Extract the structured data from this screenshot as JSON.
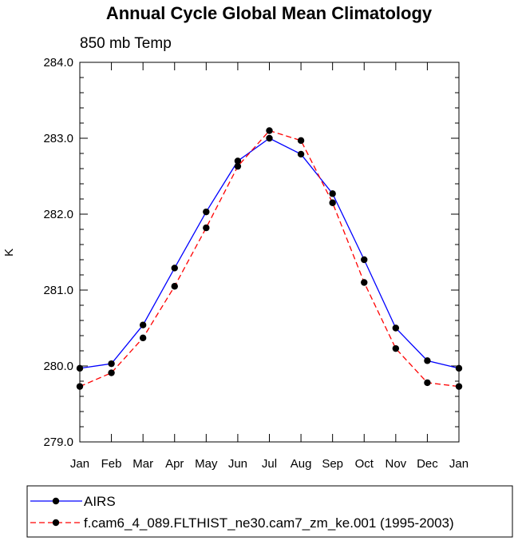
{
  "chart_data": {
    "type": "line",
    "title": "Annual Cycle Global Mean Climatology",
    "subtitle": "850 mb Temp",
    "xlabel": "",
    "ylabel": "K",
    "categories": [
      "Jan",
      "Feb",
      "Mar",
      "Apr",
      "May",
      "Jun",
      "Jul",
      "Aug",
      "Sep",
      "Oct",
      "Nov",
      "Dec",
      "Jan"
    ],
    "ylim": [
      279.0,
      284.0
    ],
    "yticks": [
      279.0,
      280.0,
      281.0,
      282.0,
      283.0,
      284.0
    ],
    "ytick_labels": [
      "279.0",
      "280.0",
      "281.0",
      "282.0",
      "283.0",
      "284.0"
    ],
    "grid": false,
    "legend_position": "bottom",
    "series": [
      {
        "name": "AIRS",
        "color": "#0000ff",
        "line_style": "solid",
        "marker": "circle",
        "values": [
          279.97,
          280.03,
          280.54,
          281.29,
          282.03,
          282.7,
          283.0,
          282.79,
          282.27,
          281.4,
          280.5,
          280.07,
          279.97
        ]
      },
      {
        "name": "f.cam6_4_089.FLTHIST_ne30.cam7_zm_ke.001 (1995-2003)",
        "color": "#ff0000",
        "line_style": "dashed",
        "marker": "circle",
        "values": [
          279.73,
          279.91,
          280.37,
          281.05,
          281.82,
          282.63,
          283.1,
          282.97,
          282.15,
          281.1,
          280.23,
          279.78,
          279.73
        ]
      }
    ]
  }
}
